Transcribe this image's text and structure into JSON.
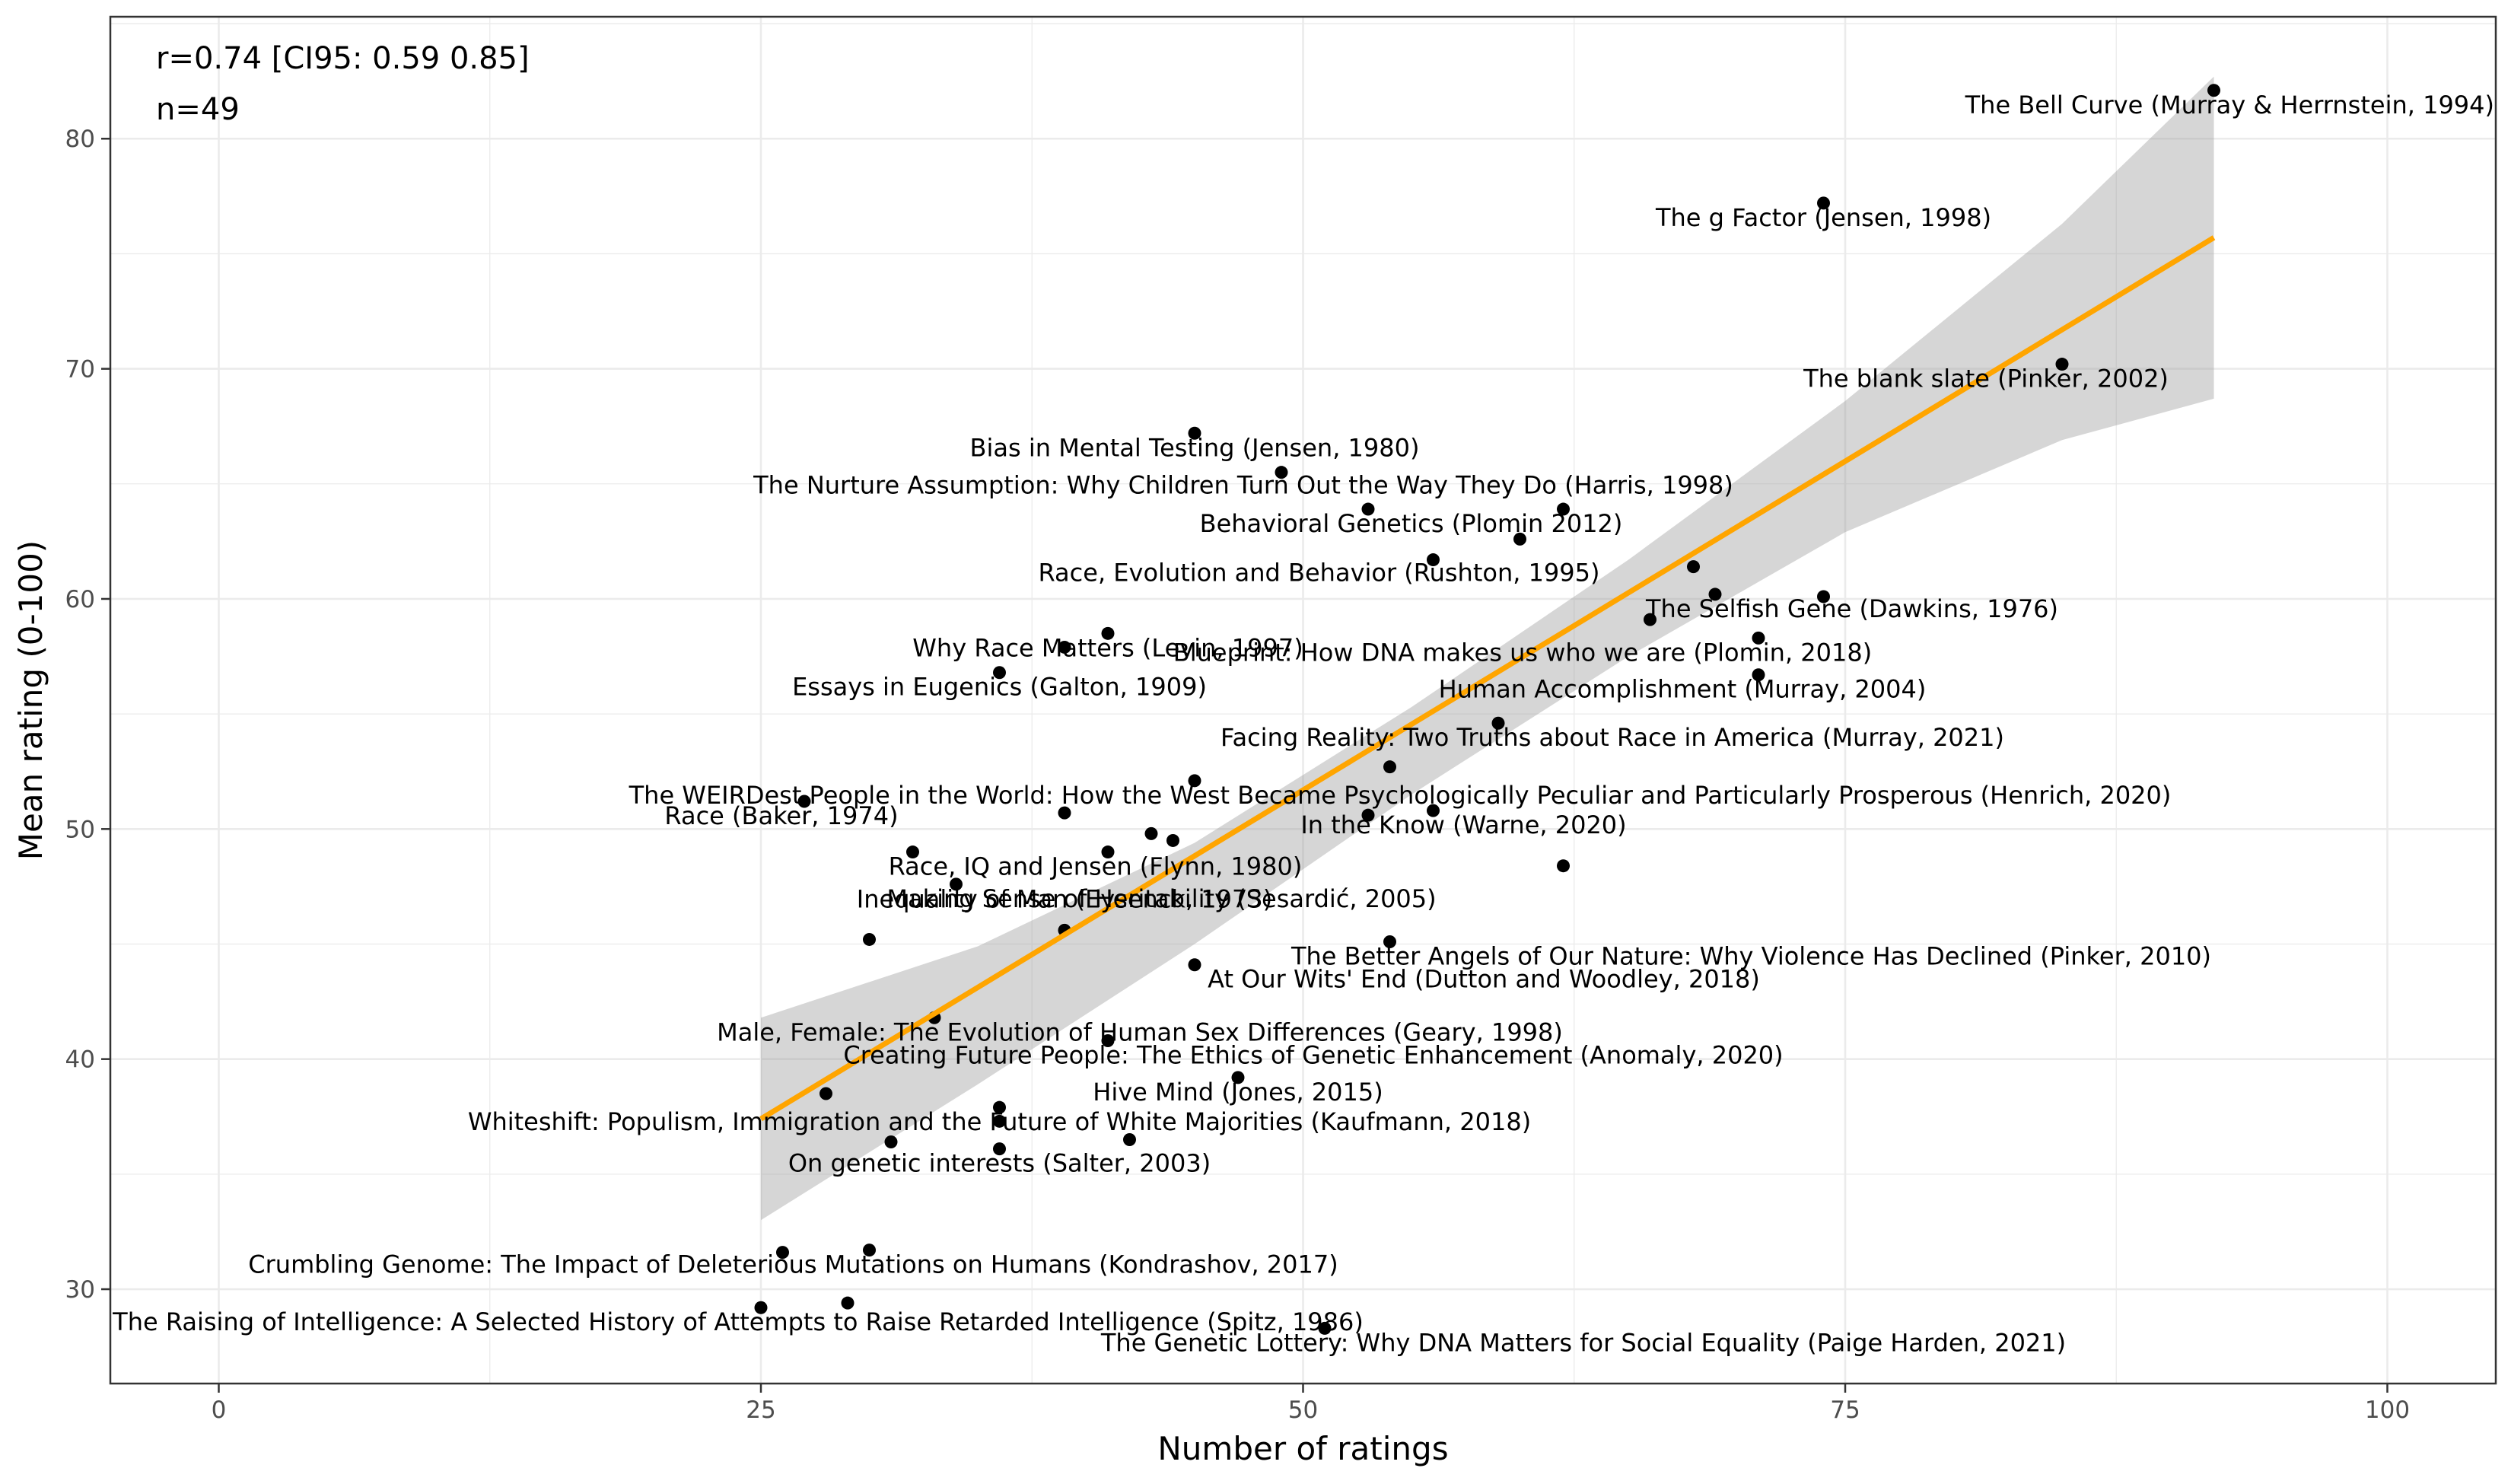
{
  "chart_data": {
    "type": "scatter",
    "title": "",
    "xlabel": "Number of ratings",
    "ylabel": "Mean rating (0-100)",
    "xlim": [
      -5,
      105
    ],
    "ylim": [
      25.9,
      85.3
    ],
    "x_ticks": [
      0,
      25,
      50,
      75,
      100
    ],
    "y_ticks": [
      30,
      40,
      50,
      60,
      70,
      80
    ],
    "grid": true,
    "annotations": [
      "r=0.74 [CI95: 0.59 0.85]",
      "n=49"
    ],
    "fit": {
      "color": "#FFA500",
      "x0": 25,
      "y0": 37.4,
      "x1": 92,
      "y1": 75.7,
      "band": [
        [
          25,
          33.0,
          41.8
        ],
        [
          35,
          38.9,
          44.9
        ],
        [
          45,
          45.0,
          49.4
        ],
        [
          55,
          51.5,
          55.3
        ],
        [
          65,
          57.5,
          61.7
        ],
        [
          75,
          62.9,
          68.6
        ],
        [
          85,
          66.9,
          76.3
        ],
        [
          92,
          68.7,
          82.7
        ]
      ]
    },
    "points": [
      {
        "x": 92,
        "y": 82.1,
        "label": "The Bell Curve (Murray & Herrnstein, 1994)"
      },
      {
        "x": 74,
        "y": 77.2,
        "label": "The g Factor (Jensen, 1998)"
      },
      {
        "x": 85,
        "y": 70.2,
        "label": "The blank slate (Pinker, 2002)"
      },
      {
        "x": 45,
        "y": 67.2,
        "label": "Bias in Mental Testing (Jensen, 1980)"
      },
      {
        "x": 49,
        "y": 65.5,
        "label": "The Nurture Assumption: Why Children Turn Out the Way They Do (Harris, 1998)"
      },
      {
        "x": 62,
        "y": 63.9,
        "label": "Behavioral Genetics (Plomin 2012)"
      },
      {
        "x": 56,
        "y": 61.7,
        "label": "Race, Evolution and Behavior (Rushton, 1995)"
      },
      {
        "x": 69,
        "y": 60.2,
        "label": "The Selfish Gene (Dawkins, 1976)"
      },
      {
        "x": 71,
        "y": 58.3,
        "label": "Blueprint: How DNA makes us who we are (Plomin, 2018)"
      },
      {
        "x": 41,
        "y": 58.5,
        "label": "Why Race Matters (Levin, 1997)"
      },
      {
        "x": 36,
        "y": 56.8,
        "label": "Essays in Eugenics (Galton, 1909)"
      },
      {
        "x": 71,
        "y": 56.7,
        "label": "Human Accomplishment (Murray, 2004)"
      },
      {
        "x": 59,
        "y": 54.6,
        "label": "Facing Reality: Two Truths about Race in America (Murray, 2021)"
      },
      {
        "x": 45,
        "y": 52.1,
        "label": "The WEIRDest People in the World: How the West Became Psychologically Peculiar and Particularly Prosperous (Henrich, 2020)"
      },
      {
        "x": 27,
        "y": 51.2,
        "label": "Race (Baker, 1974)"
      },
      {
        "x": 56,
        "y": 50.8,
        "label": "In the Know (Warne, 2020)"
      },
      {
        "x": 32,
        "y": 49.0,
        "label": "Race, IQ and Jensen (Flynn, 1980)"
      },
      {
        "x": 34,
        "y": 47.6,
        "label": "Making Sense of Heritability (Sesardić, 2005)"
      },
      {
        "x": 39,
        "y": 45.6,
        "label": "Inequality of Man (Eysenck, 1973)"
      },
      {
        "x": 54,
        "y": 45.1,
        "label": "The Better Angels of Our Nature: Why Violence Has Declined (Pinker, 2010)"
      },
      {
        "x": 45,
        "y": 44.1,
        "label": "At Our Wits' End (Dutton and Woodley, 2018)"
      },
      {
        "x": 33,
        "y": 41.8,
        "label": "Male, Female: The Evolution of Human Sex Differences (Geary, 1998)"
      },
      {
        "x": 41,
        "y": 40.8,
        "label": "Creating Future People: The Ethics of Genetic Enhancement (Anomaly, 2020)"
      },
      {
        "x": 47,
        "y": 39.2,
        "label": "Hive Mind (Jones, 2015)"
      },
      {
        "x": 36,
        "y": 37.9,
        "label": "Whiteshift: Populism, Immigration and the Future of White Majorities (Kaufmann, 2018)"
      },
      {
        "x": 36,
        "y": 36.1,
        "label": "On genetic interests (Salter, 2003)"
      },
      {
        "x": 30,
        "y": 31.7,
        "label": "Crumbling Genome: The Impact of Deleterious Mutations on Humans (Kondrashov, 2017)"
      },
      {
        "x": 25,
        "y": 29.2,
        "label": "The Raising of Intelligence: A Selected History of Attempts to Raise Retarded Intelligence (Spitz, 1986)"
      },
      {
        "x": 51,
        "y": 28.3,
        "label": "The Genetic Lottery: Why DNA Matters for Social Equality (Paige Harden, 2021)"
      },
      {
        "x": 74,
        "y": 60.1,
        "label": ""
      },
      {
        "x": 66,
        "y": 59.1,
        "label": ""
      },
      {
        "x": 68,
        "y": 61.4,
        "label": ""
      },
      {
        "x": 60,
        "y": 62.6,
        "label": ""
      },
      {
        "x": 53,
        "y": 63.9,
        "label": ""
      },
      {
        "x": 39,
        "y": 57.9,
        "label": ""
      },
      {
        "x": 54,
        "y": 52.7,
        "label": ""
      },
      {
        "x": 39,
        "y": 50.7,
        "label": ""
      },
      {
        "x": 53,
        "y": 50.6,
        "label": ""
      },
      {
        "x": 43,
        "y": 49.8,
        "label": ""
      },
      {
        "x": 41,
        "y": 49.0,
        "label": ""
      },
      {
        "x": 62,
        "y": 48.4,
        "label": ""
      },
      {
        "x": 30,
        "y": 45.2,
        "label": ""
      },
      {
        "x": 28,
        "y": 38.5,
        "label": ""
      },
      {
        "x": 36,
        "y": 37.3,
        "label": ""
      },
      {
        "x": 42,
        "y": 36.5,
        "label": ""
      },
      {
        "x": 31,
        "y": 36.4,
        "label": ""
      },
      {
        "x": 26,
        "y": 31.6,
        "label": ""
      },
      {
        "x": 29,
        "y": 29.4,
        "label": ""
      },
      {
        "x": 44,
        "y": 49.5,
        "label": ""
      }
    ]
  }
}
